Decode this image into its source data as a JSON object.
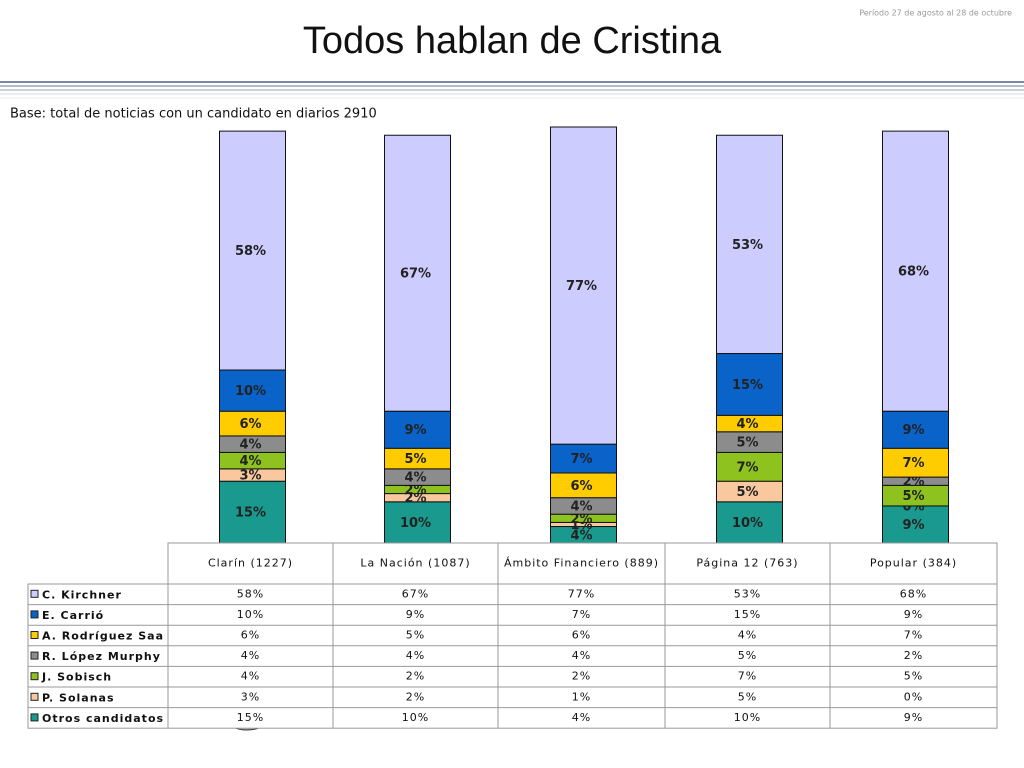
{
  "chart_data": {
    "type": "stacked_bar",
    "title": "Todos hablan de Cristina",
    "subtitle": "Período 27 de agosto al 28 de octubre",
    "base_note": "Base: total de noticias con un candidato en diarios 2910",
    "categories": [
      "Clarín (1227)",
      "La Nación (1087)",
      "Ámbito Financiero (889)",
      "Página 12 (763)",
      "Popular (384)"
    ],
    "series": [
      {
        "name": "C. Kirchner",
        "color": "#ccccff",
        "values": [
          58,
          67,
          77,
          53,
          68
        ],
        "value_labels": [
          "58%",
          "67%",
          "77%",
          "53%",
          "68%"
        ]
      },
      {
        "name": "E. Carrió",
        "color": "#0a63c9",
        "values": [
          10,
          9,
          7,
          15,
          9
        ],
        "value_labels": [
          "10%",
          "9%",
          "7%",
          "15%",
          "9%"
        ]
      },
      {
        "name": "A. Rodríguez Saa",
        "color": "#ffcc00",
        "values": [
          6,
          5,
          6,
          4,
          7
        ],
        "value_labels": [
          "6%",
          "5%",
          "6%",
          "4%",
          "7%"
        ]
      },
      {
        "name": "R. López Murphy",
        "color": "#8c8c8c",
        "values": [
          4,
          4,
          4,
          5,
          2
        ],
        "value_labels": [
          "4%",
          "4%",
          "4%",
          "5%",
          "2%"
        ]
      },
      {
        "name": "J. Sobisch",
        "color": "#8dc21f",
        "values": [
          4,
          2,
          2,
          7,
          5
        ],
        "value_labels": [
          "4%",
          "2%",
          "2%",
          "7%",
          "5%"
        ]
      },
      {
        "name": "P. Solanas",
        "color": "#f9c89e",
        "values": [
          3,
          2,
          1,
          5,
          0
        ],
        "value_labels": [
          "3%",
          "2%",
          "1%",
          "5%",
          "0%"
        ]
      },
      {
        "name": "Otros candidatos",
        "color": "#1a9a8e",
        "values": [
          15,
          10,
          4,
          10,
          9
        ],
        "value_labels": [
          "15%",
          "10%",
          "4%",
          "10%",
          "9%"
        ]
      }
    ]
  }
}
